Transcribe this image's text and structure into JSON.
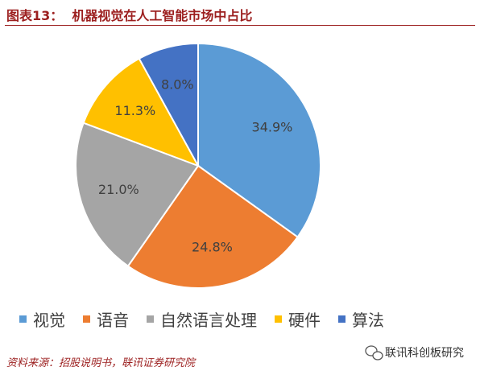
{
  "chart_data": {
    "type": "pie",
    "title": "图表13：  机器视觉在人工智能市场中占比",
    "categories": [
      "视觉",
      "语音",
      "自然语言处理",
      "硬件",
      "算法"
    ],
    "values": [
      34.9,
      24.8,
      21.0,
      11.3,
      8.0
    ],
    "value_labels": [
      "34.9%",
      "24.8%",
      "21.0%",
      "11.3%",
      "8.0%"
    ],
    "colors": [
      "#5b9bd5",
      "#ed7d31",
      "#a5a5a5",
      "#ffc000",
      "#4472c4"
    ],
    "legend": "bottom",
    "source": "资料来源：招股说明书，联讯证券研究院",
    "watermark": "联讯科创板研究"
  }
}
